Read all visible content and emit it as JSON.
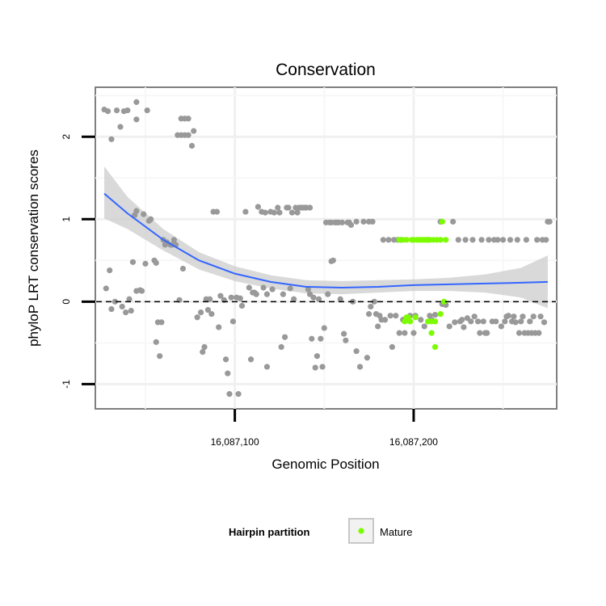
{
  "chart_data": {
    "type": "scatter",
    "title": "Conservation",
    "xlabel": "Genomic Position",
    "ylabel": "phyloP LRT conservation scores",
    "xlim": [
      16087022,
      16087280
    ],
    "ylim": [
      -1.3,
      2.6
    ],
    "x_ticks": [
      {
        "value": 16087100,
        "label": "16,087,100"
      },
      {
        "value": 16087200,
        "label": "16,087,200"
      }
    ],
    "y_ticks": [
      {
        "value": -1,
        "label": "-1"
      },
      {
        "value": 0,
        "label": "0"
      },
      {
        "value": 1,
        "label": "1"
      },
      {
        "value": 2,
        "label": "2"
      }
    ],
    "grid": true,
    "reference_line": {
      "y": 0,
      "style": "dashed"
    },
    "legend": {
      "title": "Hairpin partition",
      "entries": [
        {
          "label": "Mature",
          "color": "#7cfc00"
        }
      ],
      "position": "bottom"
    },
    "colors": {
      "other": "#999999",
      "mature": "#7cfc00",
      "smooth": "#3366ff",
      "ribbon": "#cccccc"
    },
    "series": [
      {
        "partition": "other",
        "points": [
          [
            16087027,
            2.33
          ],
          [
            16087029,
            2.31
          ],
          [
            16087031,
            1.97
          ],
          [
            16087034,
            2.32
          ],
          [
            16087036,
            2.12
          ],
          [
            16087038,
            2.31
          ],
          [
            16087040,
            2.32
          ],
          [
            16087045,
            2.42
          ],
          [
            16087045,
            2.21
          ],
          [
            16087051,
            2.32
          ],
          [
            16087068,
            2.02
          ],
          [
            16087070,
            2.02
          ],
          [
            16087072,
            2.02
          ],
          [
            16087074,
            2.02
          ],
          [
            16087070,
            2.22
          ],
          [
            16087072,
            2.22
          ],
          [
            16087074,
            2.22
          ],
          [
            16087076,
            1.89
          ],
          [
            16087077,
            2.07
          ],
          [
            16087028,
            0.16
          ],
          [
            16087030,
            0.38
          ],
          [
            16087031,
            -0.09
          ],
          [
            16087033,
            0.0
          ],
          [
            16087037,
            -0.06
          ],
          [
            16087039,
            -0.13
          ],
          [
            16087041,
            0.03
          ],
          [
            16087042,
            -0.11
          ],
          [
            16087043,
            0.48
          ],
          [
            16087044,
            1.05
          ],
          [
            16087045,
            1.1
          ],
          [
            16087045,
            0.13
          ],
          [
            16087047,
            0.14
          ],
          [
            16087048,
            0.13
          ],
          [
            16087049,
            1.06
          ],
          [
            16087050,
            0.46
          ],
          [
            16087052,
            0.98
          ],
          [
            16087053,
            1.0
          ],
          [
            16087055,
            0.5
          ],
          [
            16087056,
            0.47
          ],
          [
            16087056,
            -0.49
          ],
          [
            16087057,
            -0.25
          ],
          [
            16087058,
            -0.66
          ],
          [
            16087059,
            -0.25
          ],
          [
            16087060,
            0.75
          ],
          [
            16087061,
            0.69
          ],
          [
            16087062,
            0.72
          ],
          [
            16087064,
            0.69
          ],
          [
            16087065,
            0.69
          ],
          [
            16087066,
            0.75
          ],
          [
            16087067,
            0.69
          ],
          [
            16087069,
            0.02
          ],
          [
            16087071,
            0.4
          ],
          [
            16087079,
            -0.19
          ],
          [
            16087081,
            -0.13
          ],
          [
            16087082,
            -0.61
          ],
          [
            16087083,
            -0.55
          ],
          [
            16087084,
            0.03
          ],
          [
            16087085,
            -0.1
          ],
          [
            16087086,
            0.03
          ],
          [
            16087087,
            -0.15
          ],
          [
            16087088,
            1.09
          ],
          [
            16087090,
            1.09
          ],
          [
            16087091,
            -0.31
          ],
          [
            16087092,
            0.07
          ],
          [
            16087094,
            0.02
          ],
          [
            16087095,
            -0.7
          ],
          [
            16087096,
            -0.87
          ],
          [
            16087097,
            -1.12
          ],
          [
            16087098,
            0.05
          ],
          [
            16087099,
            -0.24
          ],
          [
            16087101,
            0.05
          ],
          [
            16087102,
            -1.12
          ],
          [
            16087103,
            0.04
          ],
          [
            16087104,
            -0.05
          ],
          [
            16087106,
            1.09
          ],
          [
            16087108,
            0.17
          ],
          [
            16087109,
            -0.7
          ],
          [
            16087110,
            0.11
          ],
          [
            16087111,
            0.11
          ],
          [
            16087112,
            0.09
          ],
          [
            16087113,
            1.15
          ],
          [
            16087115,
            1.09
          ],
          [
            16087116,
            0.17
          ],
          [
            16087117,
            1.08
          ],
          [
            16087118,
            0.09
          ],
          [
            16087118,
            -0.79
          ],
          [
            16087120,
            1.09
          ],
          [
            16087121,
            0.15
          ],
          [
            16087122,
            1.08
          ],
          [
            16087124,
            1.14
          ],
          [
            16087125,
            1.08
          ],
          [
            16087126,
            -0.55
          ],
          [
            16087127,
            0.09
          ],
          [
            16087128,
            -0.43
          ],
          [
            16087129,
            1.14
          ],
          [
            16087130,
            1.14
          ],
          [
            16087131,
            0.16
          ],
          [
            16087132,
            1.08
          ],
          [
            16087133,
            0.03
          ],
          [
            16087134,
            1.14
          ],
          [
            16087135,
            1.08
          ],
          [
            16087136,
            1.14
          ],
          [
            16087137,
            1.14
          ],
          [
            16087138,
            1.14
          ],
          [
            16087139,
            1.14
          ],
          [
            16087140,
            1.14
          ],
          [
            16087141,
            0.15
          ],
          [
            16087142,
            1.14
          ],
          [
            16087142,
            0.09
          ],
          [
            16087143,
            -0.45
          ],
          [
            16087144,
            0.05
          ],
          [
            16087145,
            -0.8
          ],
          [
            16087146,
            -0.66
          ],
          [
            16087147,
            0.03
          ],
          [
            16087148,
            -0.45
          ],
          [
            16087149,
            -0.79
          ],
          [
            16087150,
            -0.32
          ],
          [
            16087151,
            0.96
          ],
          [
            16087152,
            0.09
          ],
          [
            16087153,
            0.96
          ],
          [
            16087154,
            0.96
          ],
          [
            16087154,
            0.49
          ],
          [
            16087155,
            0.5
          ],
          [
            16087156,
            0.96
          ],
          [
            16087157,
            0.96
          ],
          [
            16087158,
            0.96
          ],
          [
            16087159,
            0.03
          ],
          [
            16087160,
            0.96
          ],
          [
            16087161,
            -0.39
          ],
          [
            16087162,
            -0.47
          ],
          [
            16087163,
            0.96
          ],
          [
            16087164,
            0.96
          ],
          [
            16087165,
            0.93
          ],
          [
            16087166,
            0.0
          ],
          [
            16087168,
            0.97
          ],
          [
            16087168,
            -0.6
          ],
          [
            16087170,
            -0.79
          ],
          [
            16087172,
            0.97
          ],
          [
            16087174,
            -0.68
          ],
          [
            16087175,
            -0.15
          ],
          [
            16087175,
            0.97
          ],
          [
            16087176,
            -0.06
          ],
          [
            16087177,
            0.97
          ],
          [
            16087178,
            0.0
          ],
          [
            16087179,
            -0.15
          ],
          [
            16087180,
            -0.3
          ],
          [
            16087181,
            -0.17
          ],
          [
            16087182,
            -0.22
          ],
          [
            16087183,
            0.75
          ],
          [
            16087184,
            -0.22
          ],
          [
            16087186,
            0.75
          ],
          [
            16087187,
            -0.17
          ],
          [
            16087188,
            -0.55
          ],
          [
            16087189,
            0.75
          ],
          [
            16087190,
            -0.17
          ],
          [
            16087191,
            0.75
          ],
          [
            16087192,
            -0.38
          ],
          [
            16087193,
            0.75
          ],
          [
            16087194,
            -0.22
          ],
          [
            16087195,
            -0.38
          ],
          [
            16087196,
            -0.22
          ],
          [
            16087198,
            -0.17
          ],
          [
            16087200,
            -0.38
          ],
          [
            16087201,
            -0.17
          ],
          [
            16087204,
            -0.22
          ],
          [
            16087206,
            -0.3
          ],
          [
            16087208,
            0.75
          ],
          [
            16087209,
            -0.17
          ],
          [
            16087210,
            -0.22
          ],
          [
            16087212,
            -0.16
          ],
          [
            16087215,
            0.97
          ],
          [
            16087216,
            -0.03
          ],
          [
            16087218,
            -0.04
          ],
          [
            16087220,
            -0.3
          ],
          [
            16087222,
            0.97
          ],
          [
            16087223,
            -0.25
          ],
          [
            16087225,
            0.75
          ],
          [
            16087226,
            -0.24
          ],
          [
            16087227,
            -0.22
          ],
          [
            16087228,
            -0.31
          ],
          [
            16087229,
            0.75
          ],
          [
            16087230,
            -0.2
          ],
          [
            16087232,
            -0.24
          ],
          [
            16087233,
            0.75
          ],
          [
            16087234,
            -0.18
          ],
          [
            16087236,
            -0.24
          ],
          [
            16087237,
            -0.38
          ],
          [
            16087238,
            0.75
          ],
          [
            16087239,
            -0.24
          ],
          [
            16087240,
            -0.38
          ],
          [
            16087241,
            -0.38
          ],
          [
            16087242,
            0.75
          ],
          [
            16087244,
            -0.24
          ],
          [
            16087245,
            0.75
          ],
          [
            16087246,
            -0.24
          ],
          [
            16087247,
            0.75
          ],
          [
            16087249,
            -0.3
          ],
          [
            16087250,
            0.75
          ],
          [
            16087251,
            -0.24
          ],
          [
            16087252,
            -0.18
          ],
          [
            16087253,
            -0.17
          ],
          [
            16087254,
            0.75
          ],
          [
            16087255,
            -0.24
          ],
          [
            16087256,
            -0.18
          ],
          [
            16087257,
            -0.25
          ],
          [
            16087258,
            0.75
          ],
          [
            16087259,
            -0.38
          ],
          [
            16087260,
            -0.24
          ],
          [
            16087261,
            -0.18
          ],
          [
            16087262,
            -0.38
          ],
          [
            16087263,
            0.75
          ],
          [
            16087264,
            -0.38
          ],
          [
            16087265,
            -0.24
          ],
          [
            16087266,
            -0.38
          ],
          [
            16087267,
            -0.18
          ],
          [
            16087268,
            -0.38
          ],
          [
            16087269,
            0.75
          ],
          [
            16087270,
            -0.38
          ],
          [
            16087271,
            -0.18
          ],
          [
            16087272,
            0.75
          ],
          [
            16087273,
            -0.25
          ],
          [
            16087274,
            0.75
          ],
          [
            16087275,
            0.97
          ],
          [
            16087276,
            0.97
          ]
        ]
      },
      {
        "partition": "Mature",
        "points": [
          [
            16087192,
            0.75
          ],
          [
            16087194,
            0.75
          ],
          [
            16087195,
            -0.24
          ],
          [
            16087196,
            0.75
          ],
          [
            16087196,
            -0.19
          ],
          [
            16087197,
            -0.19
          ],
          [
            16087198,
            -0.24
          ],
          [
            16087199,
            0.75
          ],
          [
            16087200,
            0.75
          ],
          [
            16087201,
            -0.19
          ],
          [
            16087202,
            0.75
          ],
          [
            16087203,
            0.75
          ],
          [
            16087204,
            0.75
          ],
          [
            16087205,
            0.75
          ],
          [
            16087206,
            0.75
          ],
          [
            16087207,
            0.75
          ],
          [
            16087208,
            0.75
          ],
          [
            16087208,
            -0.24
          ],
          [
            16087209,
            0.75
          ],
          [
            16087210,
            -0.24
          ],
          [
            16087210,
            -0.38
          ],
          [
            16087211,
            0.75
          ],
          [
            16087212,
            -0.24
          ],
          [
            16087212,
            -0.55
          ],
          [
            16087213,
            0.75
          ],
          [
            16087215,
            0.75
          ],
          [
            16087215,
            -0.15
          ],
          [
            16087216,
            0.97
          ],
          [
            16087217,
            0.0
          ],
          [
            16087218,
            0.75
          ]
        ]
      }
    ],
    "smooth": {
      "x": [
        16087027,
        16087040,
        16087060,
        16087080,
        16087100,
        16087120,
        16087140,
        16087160,
        16087180,
        16087200,
        16087220,
        16087240,
        16087260,
        16087275
      ],
      "y": [
        1.31,
        1.07,
        0.75,
        0.5,
        0.34,
        0.24,
        0.18,
        0.17,
        0.18,
        0.2,
        0.21,
        0.22,
        0.23,
        0.24
      ],
      "lower": [
        1.01,
        0.88,
        0.62,
        0.39,
        0.25,
        0.16,
        0.1,
        0.09,
        0.11,
        0.13,
        0.13,
        0.11,
        0.05,
        -0.08
      ],
      "upper": [
        1.64,
        1.27,
        0.88,
        0.6,
        0.43,
        0.32,
        0.26,
        0.25,
        0.26,
        0.27,
        0.29,
        0.33,
        0.41,
        0.56
      ]
    }
  }
}
